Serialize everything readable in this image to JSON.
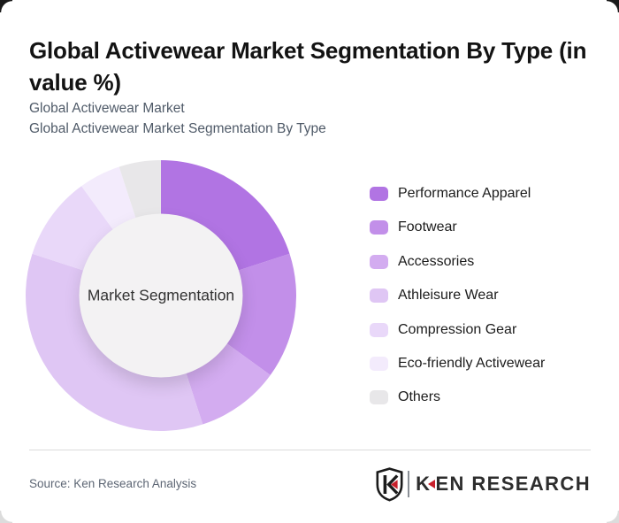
{
  "header": {
    "title_lines": [
      "Global Activewear Market Segmentation By Type (in",
      "value %)"
    ],
    "subtitle_line1": "Global Activewear Market",
    "subtitle_line2": "Global Activewear Market Segmentation By Type"
  },
  "chart_data": {
    "type": "pie",
    "variant": "donut",
    "title": "Global Activewear Market Segmentation By Type (in value %)",
    "center_label": "Market Segmentation",
    "categories": [
      "Performance Apparel",
      "Footwear",
      "Accessories",
      "Athleisure Wear",
      "Compression Gear",
      "Eco-friendly Activewear",
      "Others"
    ],
    "values": [
      20,
      15,
      10,
      35,
      10,
      5,
      5
    ],
    "unit": "value %",
    "colors": [
      "#b174e3",
      "#c28fe9",
      "#d3acf0",
      "#dfc6f4",
      "#e9d8f9",
      "#f3ebfc",
      "#e8e7e9"
    ],
    "start_angle_deg": 0,
    "direction": "clockwise",
    "legend_position": "right",
    "donut_hole_color": "#f3f2f3"
  },
  "footer": {
    "source": "Source: Ken Research Analysis",
    "logo": {
      "shield_letter": "K",
      "text_k": "K",
      "text_rest": "EN RESEARCH",
      "accent_color": "#c8202b"
    }
  }
}
